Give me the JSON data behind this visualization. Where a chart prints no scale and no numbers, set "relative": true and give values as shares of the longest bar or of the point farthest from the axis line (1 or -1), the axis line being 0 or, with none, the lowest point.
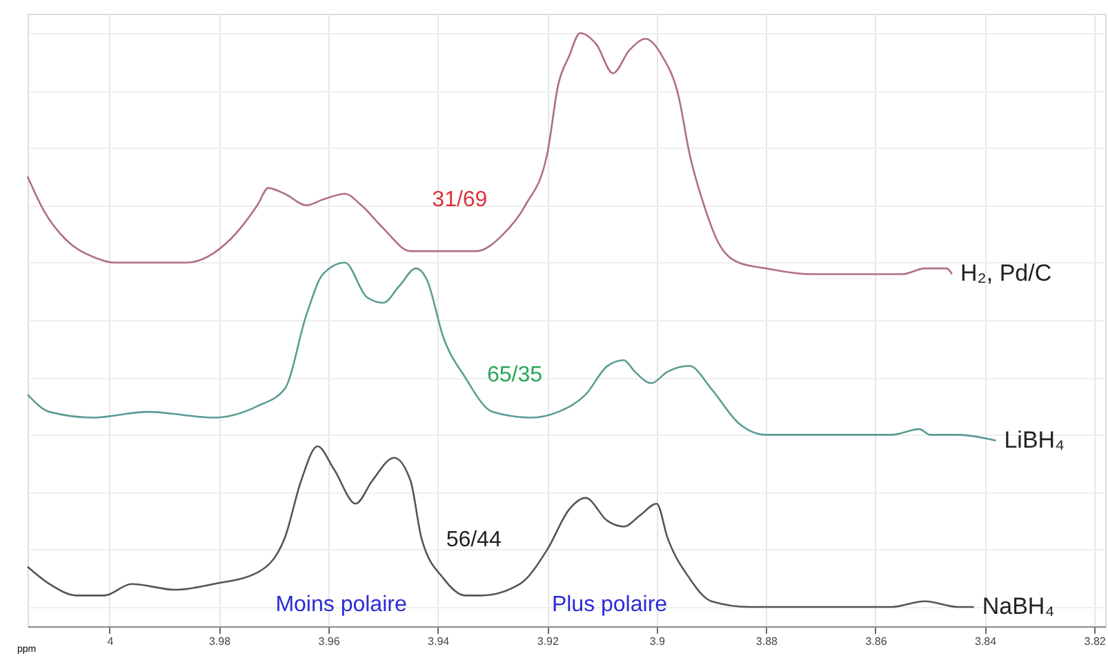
{
  "chart_data": {
    "type": "line",
    "relative": true,
    "xlabel": "ppm",
    "xlim": [
      4.015,
      3.818
    ],
    "xticks": [
      4,
      3.98,
      3.96,
      3.94,
      3.92,
      3.9,
      3.88,
      3.86,
      3.84,
      3.82
    ],
    "grid": true,
    "legend": false,
    "tick_labels": "x",
    "marker": "none",
    "line_style": "solid",
    "series": [
      {
        "name": "H₂, Pd/C",
        "color": "#b06e82",
        "x": [
          4.015,
          4.012,
          4.008,
          4.003,
          3.999,
          3.993,
          3.986,
          3.978,
          3.973,
          3.971,
          3.968,
          3.964,
          3.961,
          3.957,
          3.954,
          3.95,
          3.945,
          3.942,
          3.938,
          3.933,
          3.928,
          3.924,
          3.92,
          3.918,
          3.916,
          3.914,
          3.911,
          3.908,
          3.905,
          3.902,
          3.899,
          3.896,
          3.894,
          3.891,
          3.889,
          3.885,
          3.88,
          3.872,
          3.862,
          3.855,
          3.851,
          3.847,
          3.846
        ],
        "values": [
          0.75,
          0.69,
          0.64,
          0.61,
          0.6,
          0.6,
          0.6,
          0.64,
          0.7,
          0.73,
          0.72,
          0.7,
          0.71,
          0.72,
          0.7,
          0.66,
          0.62,
          0.62,
          0.62,
          0.62,
          0.65,
          0.7,
          0.79,
          0.91,
          0.96,
          1.0,
          0.98,
          0.93,
          0.97,
          0.99,
          0.96,
          0.89,
          0.79,
          0.69,
          0.64,
          0.6,
          0.59,
          0.58,
          0.58,
          0.58,
          0.59,
          0.59,
          0.58
        ]
      },
      {
        "name": "LiBH₄",
        "color": "#5a9c94",
        "x": [
          4.015,
          4.011,
          4.003,
          3.993,
          3.981,
          3.973,
          3.968,
          3.964,
          3.961,
          3.957,
          3.953,
          3.95,
          3.947,
          3.944,
          3.942,
          3.939,
          3.935,
          3.93,
          3.923,
          3.918,
          3.913,
          3.909,
          3.906,
          3.904,
          3.901,
          3.898,
          3.894,
          3.89,
          3.885,
          3.88,
          3.867,
          3.857,
          3.852,
          3.85,
          3.845,
          3.838
        ],
        "values": [
          0.37,
          0.34,
          0.33,
          0.34,
          0.33,
          0.35,
          0.38,
          0.51,
          0.58,
          0.6,
          0.54,
          0.53,
          0.56,
          0.59,
          0.57,
          0.47,
          0.4,
          0.34,
          0.33,
          0.34,
          0.37,
          0.42,
          0.43,
          0.41,
          0.39,
          0.41,
          0.42,
          0.38,
          0.32,
          0.3,
          0.3,
          0.3,
          0.31,
          0.3,
          0.3,
          0.29
        ]
      },
      {
        "name": "NaBH₄",
        "color": "#555555",
        "x": [
          4.015,
          4.011,
          4.006,
          4.001,
          3.996,
          3.988,
          3.981,
          3.973,
          3.968,
          3.965,
          3.962,
          3.959,
          3.955,
          3.952,
          3.948,
          3.945,
          3.943,
          3.939,
          3.935,
          3.932,
          3.925,
          3.92,
          3.916,
          3.913,
          3.909,
          3.906,
          3.903,
          3.9,
          3.898,
          3.894,
          3.89,
          3.883,
          3.867,
          3.857,
          3.851,
          3.845,
          3.842
        ],
        "values": [
          0.07,
          0.04,
          0.02,
          0.02,
          0.04,
          0.03,
          0.04,
          0.06,
          0.12,
          0.22,
          0.28,
          0.24,
          0.18,
          0.22,
          0.26,
          0.22,
          0.12,
          0.05,
          0.02,
          0.02,
          0.04,
          0.1,
          0.17,
          0.19,
          0.15,
          0.14,
          0.16,
          0.18,
          0.12,
          0.05,
          0.01,
          0.0,
          0.0,
          0.0,
          0.01,
          0.0,
          0.0
        ]
      }
    ],
    "annotations": [
      "31/69",
      "65/35",
      "56/44",
      "Moins polaire",
      "Plus polaire"
    ]
  }
}
